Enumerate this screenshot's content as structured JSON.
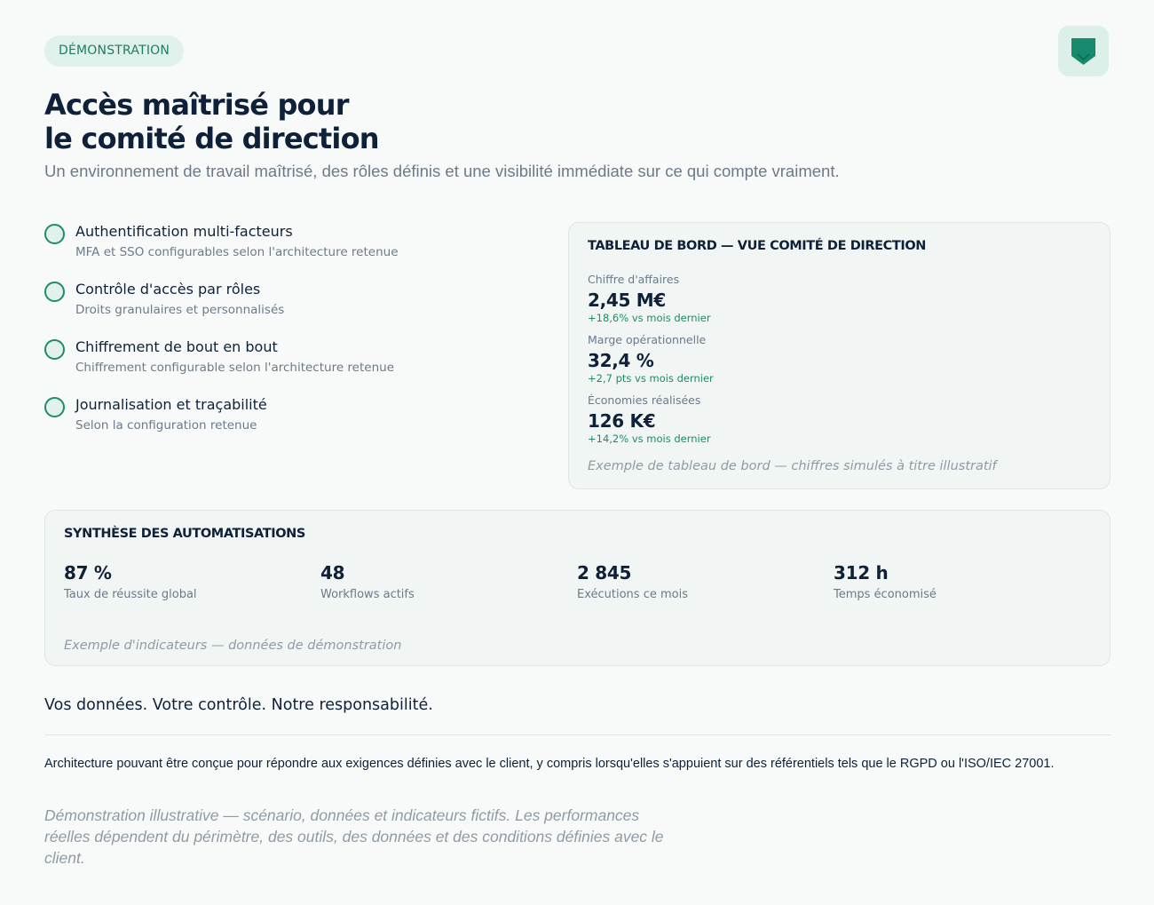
{
  "badge": "DÉMONSTRATION",
  "logo_icon": "shield-icon",
  "hero": {
    "title_line1": "Accès maîtrisé pour",
    "title_line2": "le comité de direction",
    "subtitle": "Un environnement de travail maîtrisé, des rôles définis et une visibilité immédiate sur ce qui compte vraiment."
  },
  "features": [
    {
      "title": "Authentification multi-facteurs",
      "desc": "MFA et SSO configurables selon l'architecture retenue"
    },
    {
      "title": "Contrôle d'accès par rôles",
      "desc": "Droits granulaires et personnalisés"
    },
    {
      "title": "Chiffrement de bout en bout",
      "desc": "Chiffrement configurable selon l'architecture retenue"
    },
    {
      "title": "Journalisation et traçabilité",
      "desc": "Selon la configuration retenue"
    }
  ],
  "dashboard": {
    "title": "TABLEAU DE BORD — VUE COMITÉ DE DIRECTION",
    "metrics": [
      {
        "label": "Chiffre d'affaires",
        "value": "2,45 M€",
        "delta": "+18,6% vs mois dernier"
      },
      {
        "label": "Marge opérationnelle",
        "value": "32,4 %",
        "delta": "+2,7 pts vs mois dernier"
      },
      {
        "label": "Économies réalisées",
        "value": "126 K€",
        "delta": "+14,2% vs mois dernier"
      }
    ],
    "note": "Exemple de tableau de bord — chiffres simulés à titre illustratif"
  },
  "synthesis": {
    "title": "SYNTHÈSE DES AUTOMATISATIONS",
    "kpis": [
      {
        "value": "87 %",
        "label": "Taux de réussite global"
      },
      {
        "value": "48",
        "label": "Workflows actifs"
      },
      {
        "value": "2 845",
        "label": "Exécutions ce mois"
      },
      {
        "value": "312 h",
        "label": "Temps économisé"
      }
    ],
    "note": "Exemple d'indicateurs — données de démonstration"
  },
  "footer": {
    "tagline": "Vos données. Votre contrôle. Notre responsabilité.",
    "paragraph": "Architecture pouvant être conçue pour répondre aux exigences définies avec le client, y compris lorsqu'elles s'appuient sur des référentiels tels que le RGPD ou l'ISO/IEC 27001.",
    "disclaimer": "Démonstration illustrative — scénario, données et indicateurs fictifs. Les performances réelles dépendent du périmètre, des outils, des données et des conditions définies avec le client."
  },
  "colors": {
    "accent": "#1e8a6e",
    "badge_bg": "#e0f0ea",
    "text": "#0f2138",
    "muted": "#6b7a8a"
  }
}
